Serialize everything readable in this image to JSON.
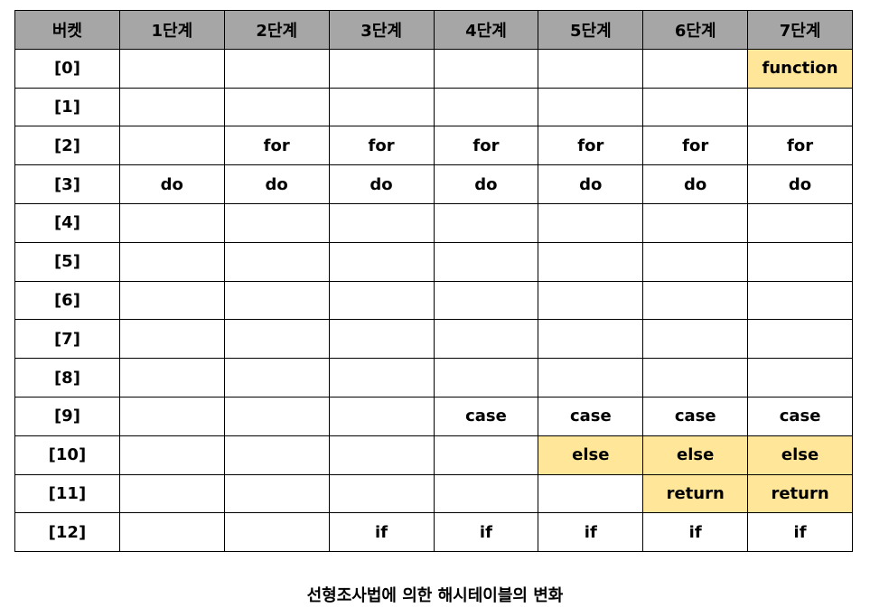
{
  "table": {
    "headers": [
      "버켓",
      "1단계",
      "2단계",
      "3단계",
      "4단계",
      "5단계",
      "6단계",
      "7단계"
    ],
    "rows": [
      {
        "bucket": "[0]",
        "cells": [
          "",
          "",
          "",
          "",
          "",
          "",
          "function"
        ],
        "highlight": [
          false,
          false,
          false,
          false,
          false,
          false,
          true
        ]
      },
      {
        "bucket": "[1]",
        "cells": [
          "",
          "",
          "",
          "",
          "",
          "",
          ""
        ],
        "highlight": [
          false,
          false,
          false,
          false,
          false,
          false,
          false
        ]
      },
      {
        "bucket": "[2]",
        "cells": [
          "",
          "for",
          "for",
          "for",
          "for",
          "for",
          "for"
        ],
        "highlight": [
          false,
          false,
          false,
          false,
          false,
          false,
          false
        ]
      },
      {
        "bucket": "[3]",
        "cells": [
          "do",
          "do",
          "do",
          "do",
          "do",
          "do",
          "do"
        ],
        "highlight": [
          false,
          false,
          false,
          false,
          false,
          false,
          false
        ]
      },
      {
        "bucket": "[4]",
        "cells": [
          "",
          "",
          "",
          "",
          "",
          "",
          ""
        ],
        "highlight": [
          false,
          false,
          false,
          false,
          false,
          false,
          false
        ]
      },
      {
        "bucket": "[5]",
        "cells": [
          "",
          "",
          "",
          "",
          "",
          "",
          ""
        ],
        "highlight": [
          false,
          false,
          false,
          false,
          false,
          false,
          false
        ]
      },
      {
        "bucket": "[6]",
        "cells": [
          "",
          "",
          "",
          "",
          "",
          "",
          ""
        ],
        "highlight": [
          false,
          false,
          false,
          false,
          false,
          false,
          false
        ]
      },
      {
        "bucket": "[7]",
        "cells": [
          "",
          "",
          "",
          "",
          "",
          "",
          ""
        ],
        "highlight": [
          false,
          false,
          false,
          false,
          false,
          false,
          false
        ]
      },
      {
        "bucket": "[8]",
        "cells": [
          "",
          "",
          "",
          "",
          "",
          "",
          ""
        ],
        "highlight": [
          false,
          false,
          false,
          false,
          false,
          false,
          false
        ]
      },
      {
        "bucket": "[9]",
        "cells": [
          "",
          "",
          "",
          "case",
          "case",
          "case",
          "case"
        ],
        "highlight": [
          false,
          false,
          false,
          false,
          false,
          false,
          false
        ]
      },
      {
        "bucket": "[10]",
        "cells": [
          "",
          "",
          "",
          "",
          "else",
          "else",
          "else"
        ],
        "highlight": [
          false,
          false,
          false,
          false,
          true,
          true,
          true
        ]
      },
      {
        "bucket": "[11]",
        "cells": [
          "",
          "",
          "",
          "",
          "",
          "return",
          "return"
        ],
        "highlight": [
          false,
          false,
          false,
          false,
          false,
          true,
          true
        ]
      },
      {
        "bucket": "[12]",
        "cells": [
          "",
          "",
          "if",
          "if",
          "if",
          "if",
          "if"
        ],
        "highlight": [
          false,
          false,
          false,
          false,
          false,
          false,
          false
        ]
      }
    ]
  },
  "caption": "선형조사법에 의한 해시테이블의 변화",
  "colors": {
    "header_bg": "#a6a6a6",
    "highlight_bg": "#ffe699",
    "border": "#000000"
  }
}
